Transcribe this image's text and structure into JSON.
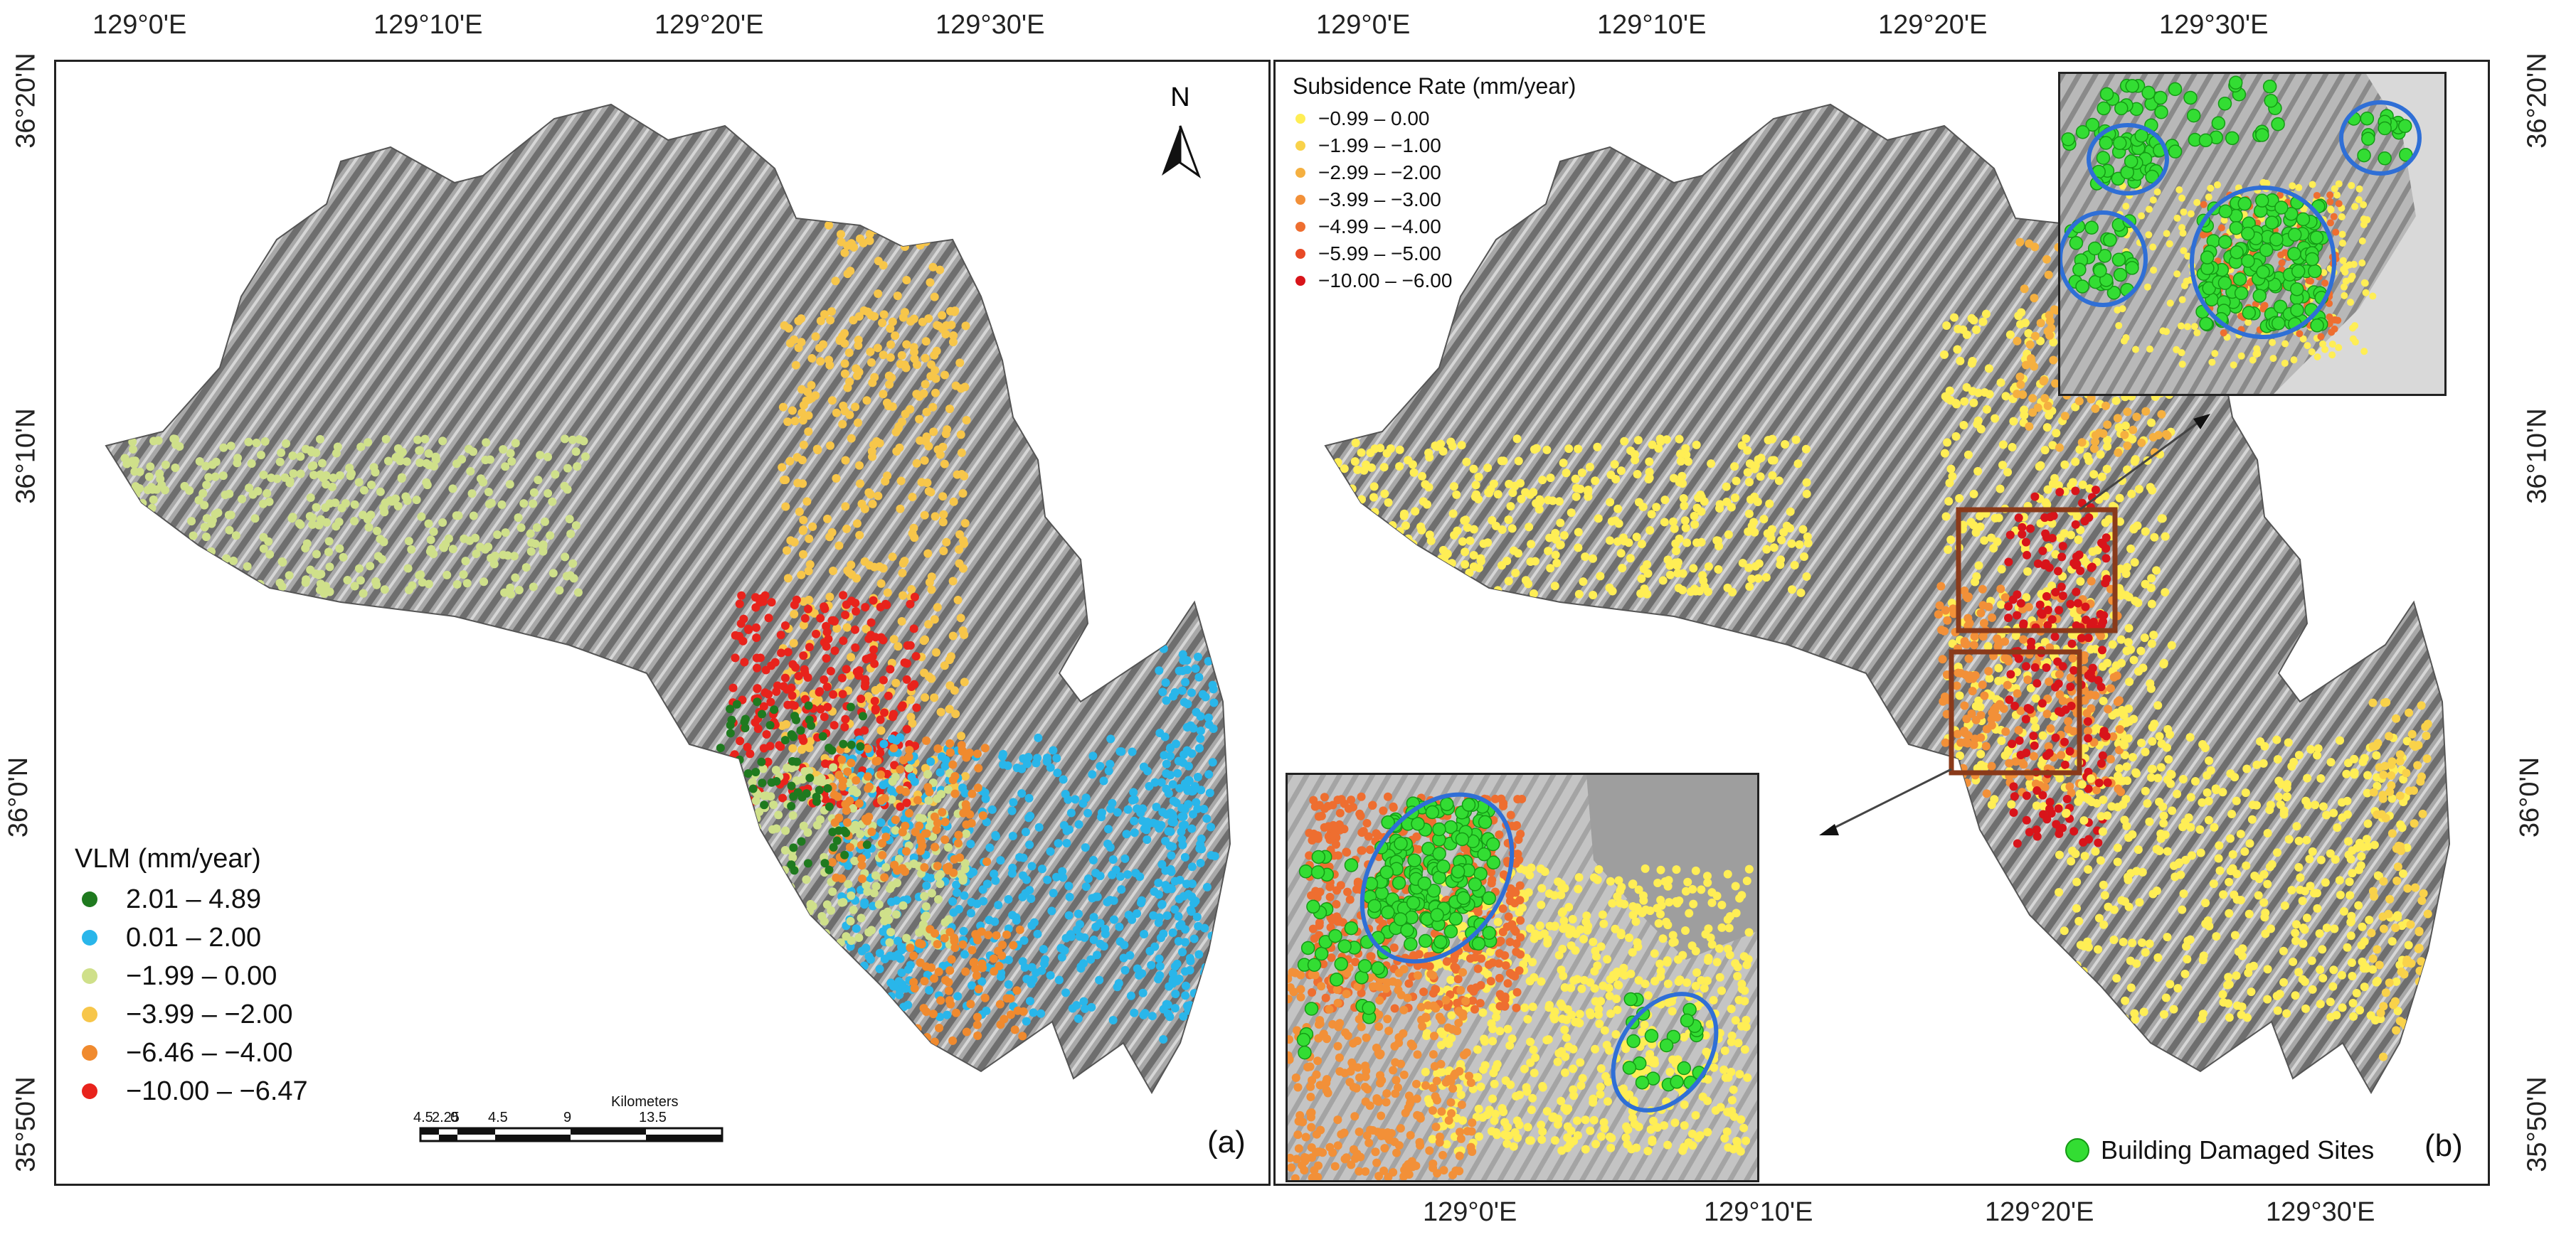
{
  "panel_a": {
    "tag": "(a)",
    "lon_ticks": [
      "129°0'E",
      "129°10'E",
      "129°20'E",
      "129°30'E"
    ],
    "lat_ticks": [
      "36°20'N",
      "36°10'N",
      "36°0'N",
      "35°50'N"
    ],
    "north_label": "N",
    "legend": {
      "title": "VLM (mm/year)",
      "items": [
        {
          "label": "2.01 – 4.89",
          "color": "#1f7a1f"
        },
        {
          "label": "0.01 – 2.00",
          "color": "#29b6ea"
        },
        {
          "label": "−1.99 – 0.00",
          "color": "#cfe08a"
        },
        {
          "label": "−3.99 – −2.00",
          "color": "#f7c64a"
        },
        {
          "label": "−6.46 – −4.00",
          "color": "#f08a2e"
        },
        {
          "label": "−10.00 – −6.47",
          "color": "#e8231c"
        }
      ]
    },
    "scale_bar": {
      "title": "Kilometers",
      "ticks": [
        "4.5",
        "2.25",
        "0",
        "4.5",
        "9",
        "13.5"
      ]
    }
  },
  "panel_b": {
    "tag": "(b)",
    "lon_ticks": [
      "129°0'E",
      "129°10'E",
      "129°20'E",
      "129°30'E"
    ],
    "lat_ticks": [
      "36°20'N",
      "36°10'N",
      "36°0'N",
      "35°50'N"
    ],
    "legend": {
      "title": "Subsidence Rate (mm/year)",
      "items": [
        {
          "label": "−0.99 – 0.00",
          "color": "#ffee55"
        },
        {
          "label": "−1.99 – −1.00",
          "color": "#f9d24a"
        },
        {
          "label": "−2.99 – −2.00",
          "color": "#f5b040"
        },
        {
          "label": "−3.99 – −3.00",
          "color": "#f29038"
        },
        {
          "label": "−4.99 – −4.00",
          "color": "#ee6e30"
        },
        {
          "label": "−5.99 – −5.00",
          "color": "#e84a26"
        },
        {
          "label": "−10.00 – −6.00",
          "color": "#d8141a"
        }
      ]
    },
    "damage_legend": "Building Damaged Sites",
    "damage_color": "#33dd33",
    "highlight_color": "#2f6fd6",
    "box_color": "#8a3a1a"
  }
}
